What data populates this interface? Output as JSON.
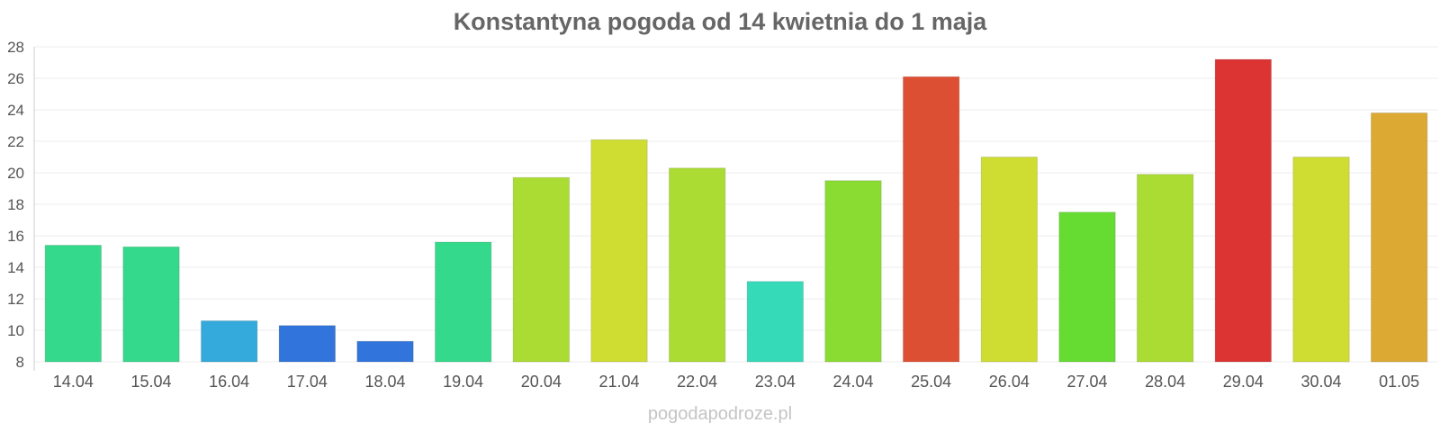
{
  "chart_data": {
    "type": "bar",
    "title": "Konstantyna pogoda od 14 kwietnia do 1 maja",
    "xlabel": "",
    "ylabel": "",
    "ylim": [
      8,
      28
    ],
    "y_ticks": [
      "8",
      "10",
      "12",
      "14",
      "16",
      "18",
      "20",
      "22",
      "24",
      "26",
      "28"
    ],
    "grid": "horizontal",
    "categories": [
      "14.04",
      "15.04",
      "16.04",
      "17.04",
      "18.04",
      "19.04",
      "20.04",
      "21.04",
      "22.04",
      "23.04",
      "24.04",
      "25.04",
      "26.04",
      "27.04",
      "28.04",
      "29.04",
      "30.04",
      "01.05"
    ],
    "values": [
      15.4,
      15.3,
      10.6,
      10.3,
      9.3,
      15.6,
      19.7,
      22.1,
      20.3,
      13.1,
      19.5,
      26.1,
      21.0,
      17.5,
      19.9,
      27.2,
      21.0,
      23.8
    ],
    "colors": [
      "#35d98b",
      "#35d98b",
      "#34a9db",
      "#3174db",
      "#3174db",
      "#35d98b",
      "#abdc33",
      "#cfdd33",
      "#abdc33",
      "#35dab9",
      "#8adc33",
      "#dd4f32",
      "#cfdd33",
      "#66dc33",
      "#abdc33",
      "#dc3433",
      "#cfdd33",
      "#dca933"
    ]
  },
  "watermark": "pogodapodroze.pl"
}
